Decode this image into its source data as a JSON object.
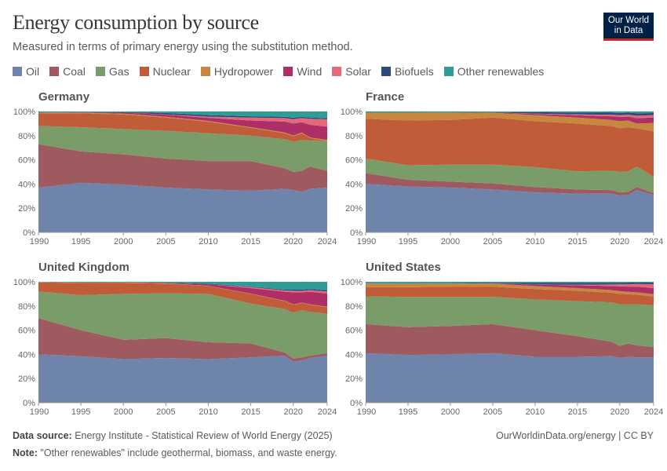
{
  "title": "Energy consumption by source",
  "subtitle": "Measured in terms of primary energy using the substitution method.",
  "logo": {
    "line1": "Our World",
    "line2": "in Data"
  },
  "footer": {
    "source_label": "Data source:",
    "source_text": " Energy Institute - Statistical Review of World Energy (2025)",
    "note_label": "Note:",
    "note_text": " \"Other renewables\" include geothermal, biomass, and waste energy.",
    "url": "OurWorldinData.org/energy | CC BY"
  },
  "chart_data": {
    "type": "area",
    "stacked": true,
    "grid": true,
    "legend_placement": "top",
    "ylim": [
      0,
      100
    ],
    "xlim": [
      1990,
      2024
    ],
    "yticks": [
      "0%",
      "20%",
      "40%",
      "60%",
      "80%",
      "100%"
    ],
    "xticks": [
      1990,
      1995,
      2000,
      2005,
      2010,
      2015,
      2020,
      2024
    ],
    "sources": [
      "Oil",
      "Coal",
      "Gas",
      "Nuclear",
      "Hydropower",
      "Wind",
      "Solar",
      "Biofuels",
      "Other renewables"
    ],
    "colors": [
      "#6e84ab",
      "#9e5a5f",
      "#799c68",
      "#c05c38",
      "#c8873f",
      "#ad2f66",
      "#e3687a",
      "#2d4a7a",
      "#2f9c97"
    ],
    "years": [
      1990,
      1995,
      2000,
      2005,
      2010,
      2015,
      2019,
      2020,
      2021,
      2022,
      2024
    ],
    "panels": [
      {
        "name": "Germany",
        "series": [
          [
            37,
            41,
            39.5,
            37,
            35.5,
            34.5,
            36,
            35,
            33.5,
            36,
            37
          ],
          [
            36,
            26,
            25,
            24,
            23.5,
            24.5,
            17,
            15,
            17.5,
            18.5,
            14
          ],
          [
            15,
            20,
            21,
            23,
            23,
            21,
            24,
            25,
            25.5,
            21.5,
            24.5
          ],
          [
            10.5,
            11.5,
            12,
            11,
            9.5,
            6.5,
            5,
            4.5,
            5.5,
            2,
            0
          ],
          [
            0.5,
            0.5,
            0.7,
            0.6,
            0.7,
            0.5,
            0.6,
            0.6,
            0.6,
            0.5,
            1
          ],
          [
            0,
            0.3,
            0.8,
            1.8,
            2.5,
            5.5,
            9,
            10,
            8.5,
            10.5,
            11
          ],
          [
            0,
            0,
            0,
            0.2,
            1,
            2.5,
            3,
            3.5,
            3.5,
            5,
            6
          ],
          [
            0,
            0.1,
            0.4,
            1.2,
            1.3,
            1,
            1,
            1.2,
            1,
            1,
            1
          ],
          [
            1,
            0.6,
            0.6,
            1.2,
            3,
            4,
            4.4,
            5.2,
            4.4,
            5,
            5.5
          ]
        ]
      },
      {
        "name": "France",
        "series": [
          [
            40,
            38,
            37,
            35.5,
            33,
            32,
            32,
            30.5,
            31,
            35,
            31
          ],
          [
            9,
            5.5,
            5,
            5,
            4.5,
            3.5,
            3,
            2.5,
            2.5,
            2.5,
            1.5
          ],
          [
            12,
            12,
            14,
            15.5,
            16.5,
            15,
            16,
            17,
            17,
            17,
            13.5
          ],
          [
            33,
            37,
            37,
            39,
            38,
            39.5,
            37,
            36,
            36.5,
            31.5,
            37.5
          ],
          [
            5,
            6.5,
            6,
            4,
            5,
            5,
            5,
            6,
            5.5,
            4,
            7
          ],
          [
            0,
            0,
            0,
            0.2,
            1,
            1.8,
            3,
            3.5,
            3.3,
            4.5,
            4.5
          ],
          [
            0,
            0,
            0,
            0,
            0.2,
            0.8,
            1.3,
            1.5,
            1.5,
            2,
            2
          ],
          [
            0,
            0,
            0.2,
            0.3,
            1.2,
            1.5,
            1.7,
            1.8,
            1.7,
            2,
            1.7
          ],
          [
            1,
            1,
            0.8,
            0.5,
            0.6,
            0.9,
            1,
            1.2,
            1,
            1.5,
            1.3
          ]
        ]
      },
      {
        "name": "United Kingdom",
        "series": [
          [
            40,
            38.5,
            36,
            37,
            36,
            37.5,
            39,
            34,
            35,
            37,
            39
          ],
          [
            30,
            21.5,
            16,
            16.5,
            14,
            11.5,
            2.5,
            2.5,
            2.5,
            2,
            2
          ],
          [
            22,
            29,
            38,
            37,
            40,
            33,
            36,
            38,
            39,
            36,
            32.5
          ],
          [
            7.5,
            10,
            9,
            8,
            6.5,
            8,
            6.5,
            6.5,
            6,
            6,
            5.5
          ],
          [
            0.3,
            0.3,
            0.4,
            0.3,
            0.2,
            0.3,
            0.3,
            0.3,
            0.3,
            0.3,
            0.4
          ],
          [
            0,
            0.1,
            0.1,
            0.4,
            1.3,
            4.5,
            7.5,
            10,
            8.5,
            10.5,
            11
          ],
          [
            0,
            0,
            0,
            0,
            0,
            0.8,
            1,
            1.3,
            1.2,
            1.3,
            1.6
          ],
          [
            0,
            0,
            0,
            0.1,
            0.5,
            0.4,
            0.7,
            0.9,
            1,
            1,
            1
          ],
          [
            0.2,
            0.6,
            0.5,
            0.7,
            1.5,
            4,
            6.5,
            6.5,
            6.5,
            6,
            7
          ]
        ]
      },
      {
        "name": "United States",
        "series": [
          [
            41,
            39.5,
            40,
            41,
            38,
            38,
            38.5,
            37,
            38,
            37.5,
            37.5
          ],
          [
            24,
            23,
            23.5,
            24,
            22,
            17,
            12,
            10,
            11,
            10,
            8.5
          ],
          [
            23,
            25,
            24,
            22.5,
            25.5,
            29,
            32.5,
            34.5,
            32.5,
            34,
            34.5
          ],
          [
            7.5,
            8,
            8.5,
            8.5,
            8.5,
            8.5,
            8,
            8.5,
            8.2,
            7.8,
            7.5
          ],
          [
            3,
            3,
            2.5,
            2.5,
            2.5,
            2.3,
            2.2,
            2.3,
            2,
            2,
            1.8
          ],
          [
            0.1,
            0,
            0,
            0.2,
            1.2,
            2.3,
            3.3,
            4,
            4.3,
            4.7,
            5
          ],
          [
            0,
            0,
            0,
            0,
            0.1,
            0.5,
            1.3,
            1.6,
            2,
            2.2,
            3.2
          ],
          [
            0.3,
            0.4,
            0.4,
            0.5,
            1.4,
            1.5,
            1.4,
            1.3,
            1.3,
            1.2,
            1.3
          ],
          [
            1.1,
            1.1,
            1.1,
            0.8,
            0.8,
            0.9,
            0.8,
            0.8,
            0.7,
            0.6,
            0.7
          ]
        ]
      }
    ]
  }
}
